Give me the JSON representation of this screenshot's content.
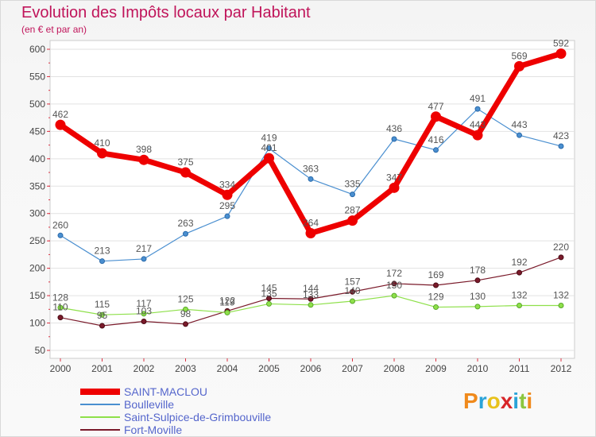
{
  "title": "Evolution des Impôts locaux par Habitant",
  "subtitle": "(en € et par an)",
  "logo_text": "Proxiti",
  "chart_data": {
    "type": "line",
    "x": [
      "2000",
      "2001",
      "2002",
      "2003",
      "2004",
      "2005",
      "2006",
      "2007",
      "2008",
      "2009",
      "2010",
      "2011",
      "2012"
    ],
    "ylim": [
      50,
      600
    ],
    "yticks": [
      50,
      100,
      150,
      200,
      250,
      300,
      350,
      400,
      450,
      500,
      550,
      600
    ],
    "grid": "horizontal",
    "legend": "bottom-left",
    "series": [
      {
        "name": "SAINT-MACLOU",
        "color": "#ee0000",
        "values": [
          462,
          410,
          398,
          375,
          334,
          401,
          264,
          287,
          347,
          477,
          443,
          569,
          592
        ]
      },
      {
        "name": "Boulleville",
        "color": "#4a8fd0",
        "values": [
          260,
          213,
          217,
          263,
          295,
          419,
          363,
          335,
          436,
          416,
          491,
          443,
          423
        ]
      },
      {
        "name": "Saint-Sulpice-de-Grimbouville",
        "color": "#8ee04a",
        "values": [
          128,
          115,
          117,
          125,
          119,
          135,
          133,
          140,
          150,
          129,
          130,
          132,
          132
        ]
      },
      {
        "name": "Fort-Moville",
        "color": "#7a1a2a",
        "values": [
          110,
          95,
          103,
          98,
          122,
          145,
          144,
          157,
          172,
          169,
          178,
          192,
          220
        ]
      }
    ]
  }
}
